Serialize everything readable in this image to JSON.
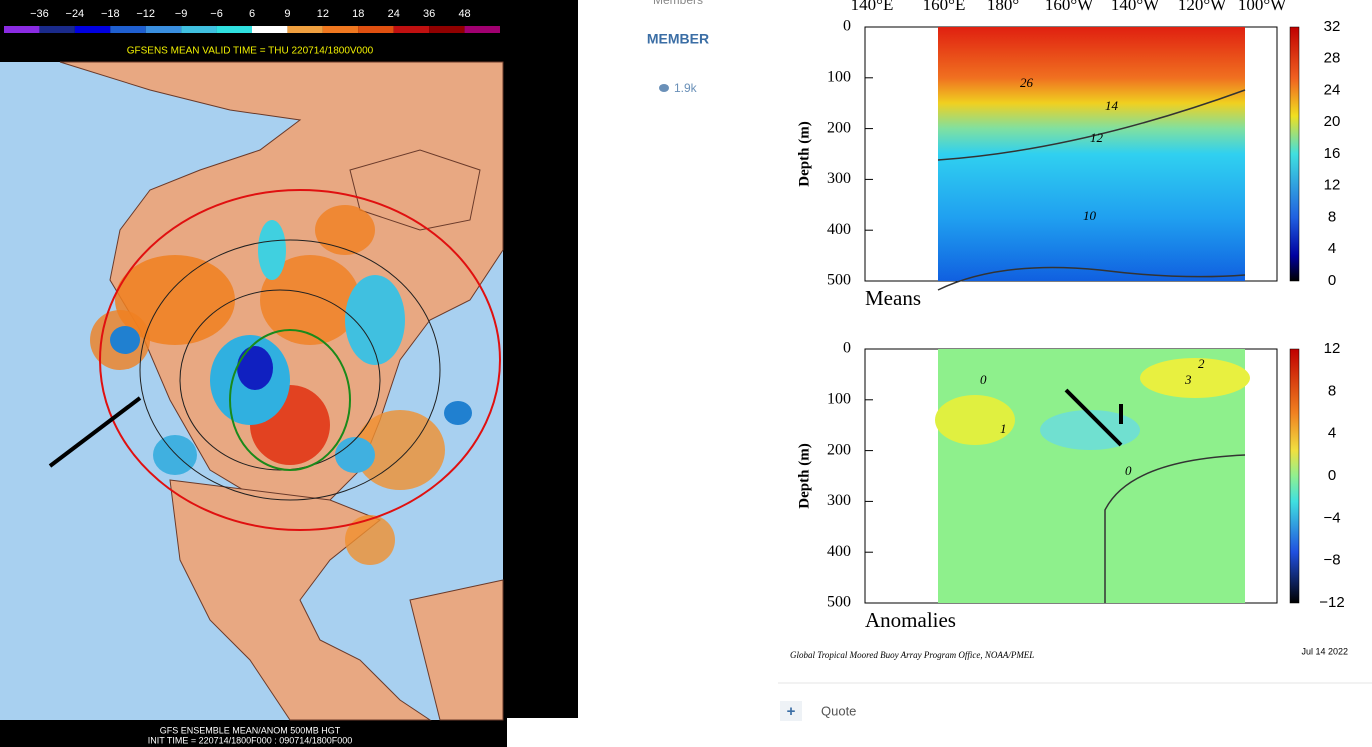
{
  "sidebar": {
    "role": "Members",
    "rank": "MEMBER",
    "reactions": "1.9k"
  },
  "map": {
    "colorbar_labels": [
      "−36",
      "−24",
      "−18",
      "−12",
      "−9",
      "−6",
      "6",
      "9",
      "12",
      "18",
      "24",
      "36",
      "48"
    ],
    "colorbar_colors": [
      "#8a2be2",
      "#1a2a8a",
      "#0000e0",
      "#1f5fd0",
      "#3a8fe0",
      "#40c0e0",
      "#30e0e0",
      "#ffffff",
      "#f0a040",
      "#f07820",
      "#e05010",
      "#c01010",
      "#900000",
      "#a00070"
    ],
    "header": "GFSENS MEAN VALID TIME = THU 220714/1800V000",
    "footer": [
      "GFS ENSEMBLE MEAN/ANOM 500MB HGT",
      "INIT TIME = 220714/1800F000 : 090714/1800F000"
    ]
  },
  "ocean": {
    "longitudes": [
      "140°E",
      "160°E",
      "180°",
      "160°W",
      "140°W",
      "120°W",
      "100°W"
    ],
    "depth_axis_label": "Depth (m)",
    "depth_ticks": [
      "0",
      "100",
      "200",
      "300",
      "400",
      "500"
    ],
    "means": {
      "title": "Means",
      "colorbar_ticks": [
        "32",
        "28",
        "24",
        "20",
        "16",
        "12",
        "8",
        "4",
        "0"
      ],
      "contour_labels": [
        "26",
        "14",
        "12",
        "10"
      ]
    },
    "anomalies": {
      "title": "Anomalies",
      "colorbar_ticks": [
        "12",
        "8",
        "4",
        "0",
        "−4",
        "−8",
        "−12"
      ],
      "contour_labels": [
        "0",
        "2",
        "3",
        "1",
        "0"
      ]
    },
    "credit": "Global Tropical Moored Buoy Array Program Office, NOAA/PMEL",
    "date": "Jul 14 2022"
  },
  "actions": {
    "quote": "Quote",
    "plus": "+"
  }
}
